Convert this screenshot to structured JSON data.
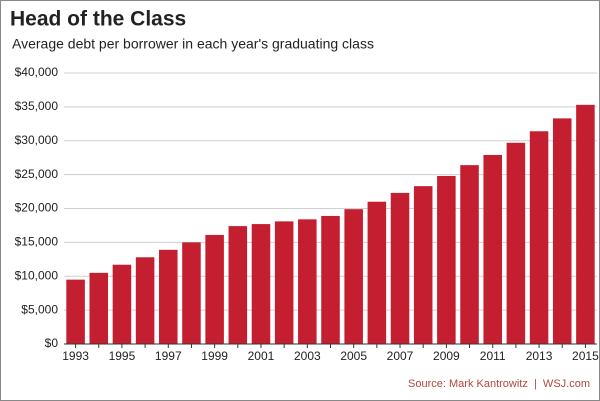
{
  "chart_data": {
    "type": "bar",
    "title": "Head of the Class",
    "subtitle": "Average debt per borrower in each year's graduating class",
    "source": "Source: Mark Kantrowitz  |  WSJ.com",
    "categories": [
      "1993",
      null,
      "1995",
      null,
      "1997",
      null,
      "1999",
      null,
      "2001",
      null,
      "2003",
      null,
      "2005",
      null,
      "2007",
      null,
      "2009",
      null,
      "2011",
      null,
      "2013",
      null,
      "2015"
    ],
    "values": [
      9500,
      10500,
      11700,
      12800,
      13900,
      15000,
      16100,
      17400,
      17700,
      18100,
      18400,
      18900,
      19900,
      21000,
      22300,
      23300,
      24800,
      26400,
      27900,
      29700,
      31400,
      33300,
      35300
    ],
    "color": "#c41f30",
    "ylim": [
      0,
      40000
    ],
    "yticks": [
      {
        "value": 0,
        "label": "$0"
      },
      {
        "value": 5000,
        "label": "$5,000"
      },
      {
        "value": 10000,
        "label": "$10,000"
      },
      {
        "value": 15000,
        "label": "$15,000"
      },
      {
        "value": 20000,
        "label": "$20,000"
      },
      {
        "value": 25000,
        "label": "$25,000"
      },
      {
        "value": 30000,
        "label": "$30,000"
      },
      {
        "value": 35000,
        "label": "$35,000"
      },
      {
        "value": 40000,
        "label": "$40,000"
      }
    ],
    "grid": true
  }
}
